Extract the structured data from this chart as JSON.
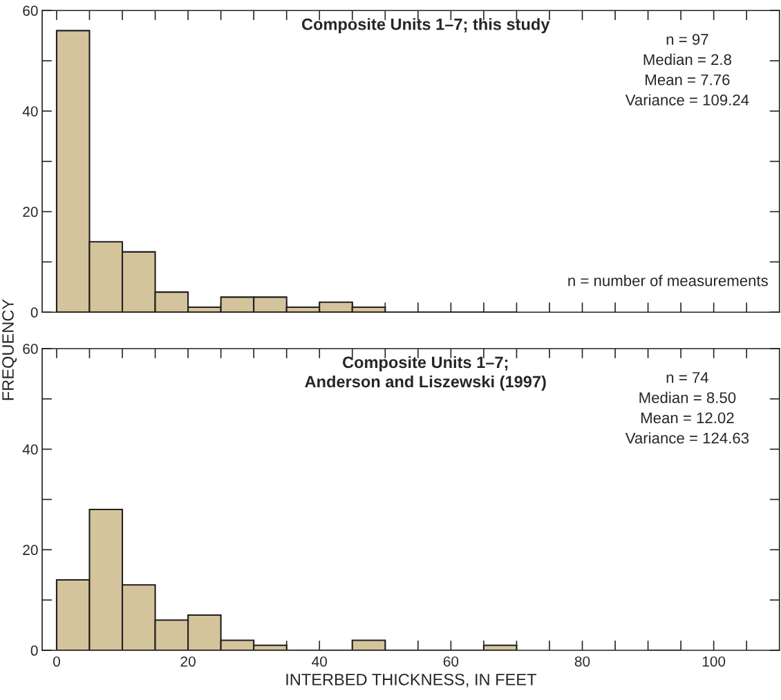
{
  "chart_data": [
    {
      "type": "histogram",
      "title": "Composite Units 1–7; this study",
      "ylabel": "FREQUENCY",
      "colors": [
        "#d4c49c",
        "#d4c49c",
        "#d4c49c",
        "#d4c49c",
        "#d4c49c",
        "#d4c49c",
        "#d4c49c",
        "#d4c49c",
        "#d4c49c",
        "#d4c49c",
        "#231f20",
        "#231f20",
        "#231f20",
        "#231f20"
      ],
      "bins": [
        0,
        5,
        10,
        15,
        20,
        25,
        30,
        35,
        40,
        45,
        50,
        55,
        60,
        65,
        70
      ],
      "values": [
        56,
        14,
        12,
        4,
        1,
        3,
        3,
        1,
        2,
        1,
        0,
        0,
        0,
        0
      ],
      "xlim": [
        -2.2,
        110
      ],
      "ylim": [
        0,
        60
      ],
      "xticks": [
        0,
        {
          "value": 5,
          "label": null
        },
        {
          "value": 10,
          "label": null
        },
        {
          "value": 15,
          "label": null
        },
        20,
        {
          "value": 25,
          "label": null
        },
        {
          "value": 30,
          "label": null
        },
        {
          "value": 35,
          "label": null
        },
        40,
        {
          "value": 45,
          "label": null
        },
        {
          "value": 50,
          "label": null
        },
        {
          "value": 55,
          "label": null
        },
        60,
        {
          "value": 65,
          "label": null
        },
        {
          "value": 70,
          "label": null
        },
        {
          "value": 75,
          "label": null
        },
        80,
        {
          "value": 85,
          "label": null
        },
        {
          "value": 90,
          "label": null
        },
        {
          "value": 95,
          "label": null
        },
        100,
        {
          "value": 105,
          "label": null
        }
      ],
      "yticks": [
        0,
        {
          "value": 10,
          "label": null
        },
        20,
        {
          "value": 30,
          "label": null
        },
        40,
        {
          "value": 50,
          "label": null
        },
        60
      ],
      "tick_labels": "y",
      "annotations": [
        "n = 97",
        "Median = 2.8",
        "Mean = 7.76",
        "Variance = 109.24",
        "n = number of measurements"
      ]
    },
    {
      "type": "histogram",
      "title": "Composite Units 1–7;\nAnderson and Liszewski (1997)",
      "xlabel": "INTERBED THICKNESS, IN FEET",
      "colors": [
        "#d4c49c",
        "#d4c49c",
        "#d4c49c",
        "#d4c49c",
        "#d4c49c",
        "#d4c49c",
        "#d4c49c",
        "#231f20",
        "#231f20",
        "#d4c49c",
        "#231f20",
        "#231f20",
        "#231f20",
        "#d4c49c",
        null,
        null,
        null,
        null,
        "#231f20"
      ],
      "bins": [
        0,
        5,
        10,
        15,
        20,
        25,
        30,
        35,
        40,
        45,
        50,
        55,
        60,
        65,
        70,
        75,
        80,
        85,
        90,
        95
      ],
      "values": [
        14,
        28,
        13,
        6,
        7,
        2,
        1,
        0,
        0,
        2,
        0,
        0,
        0,
        1,
        null,
        null,
        null,
        null,
        0
      ],
      "xlim": [
        -2.2,
        110
      ],
      "ylim": [
        0,
        60
      ],
      "xticks": [
        0,
        {
          "value": 5,
          "label": null
        },
        {
          "value": 10,
          "label": null
        },
        {
          "value": 15,
          "label": null
        },
        20,
        {
          "value": 25,
          "label": null
        },
        {
          "value": 30,
          "label": null
        },
        {
          "value": 35,
          "label": null
        },
        40,
        {
          "value": 45,
          "label": null
        },
        {
          "value": 50,
          "label": null
        },
        {
          "value": 55,
          "label": null
        },
        60,
        {
          "value": 65,
          "label": null
        },
        {
          "value": 70,
          "label": null
        },
        {
          "value": 75,
          "label": null
        },
        80,
        {
          "value": 85,
          "label": null
        },
        {
          "value": 90,
          "label": null
        },
        {
          "value": 95,
          "label": null
        },
        100,
        {
          "value": 105,
          "label": null
        }
      ],
      "yticks": [
        0,
        {
          "value": 10,
          "label": null
        },
        20,
        {
          "value": 30,
          "label": null
        },
        40,
        {
          "value": 50,
          "label": null
        },
        60
      ],
      "annotations": [
        "n = 74",
        "Median = 8.50",
        "Mean = 12.02",
        "Variance = 124.63"
      ]
    }
  ]
}
